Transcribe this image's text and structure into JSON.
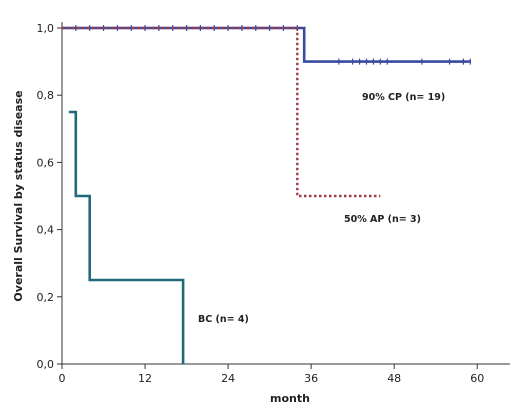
{
  "chart_data": {
    "type": "line",
    "xlabel": "month",
    "ylabel": "Overall Survival by status disease",
    "xlim": [
      0,
      63
    ],
    "ylim": [
      0,
      1.0
    ],
    "x_ticks": [
      0,
      12,
      24,
      36,
      48,
      60
    ],
    "y_ticks": [
      0.0,
      0.2,
      0.4,
      0.6,
      0.8,
      1.0
    ],
    "y_tick_labels": [
      "0,0",
      "0,2",
      "0,4",
      "0,6",
      "0,8",
      "1,0"
    ],
    "grid": false,
    "legend": "none",
    "series": [
      {
        "key": "cp",
        "annotation": "90% CP (n= 19)",
        "color": "#3a4aa0",
        "style": "solid",
        "steps": [
          [
            0,
            1.0
          ],
          [
            35,
            1.0
          ],
          [
            35,
            0.9
          ],
          [
            59,
            0.9
          ]
        ],
        "censored_x": [
          2,
          4,
          6,
          8,
          10,
          12,
          14,
          16,
          18,
          20,
          22,
          24,
          26,
          28,
          30,
          32,
          34,
          40,
          42,
          43,
          44,
          45,
          46,
          47,
          52,
          56,
          58,
          59
        ]
      },
      {
        "key": "ap",
        "annotation": "50% AP (n= 3)",
        "color": "#a03c46",
        "style": "dotted",
        "steps": [
          [
            0,
            1.0
          ],
          [
            34,
            1.0
          ],
          [
            34,
            0.5
          ],
          [
            46,
            0.5
          ]
        ],
        "censored_x": []
      },
      {
        "key": "bc",
        "annotation": "BC (n= 4)",
        "color": "#1f6b78",
        "style": "solid",
        "steps": [
          [
            1,
            0.75
          ],
          [
            2,
            0.75
          ],
          [
            2,
            0.5
          ],
          [
            4,
            0.5
          ],
          [
            4,
            0.25
          ],
          [
            17.5,
            0.25
          ],
          [
            17.5,
            0.0
          ]
        ],
        "censored_x": []
      }
    ]
  }
}
